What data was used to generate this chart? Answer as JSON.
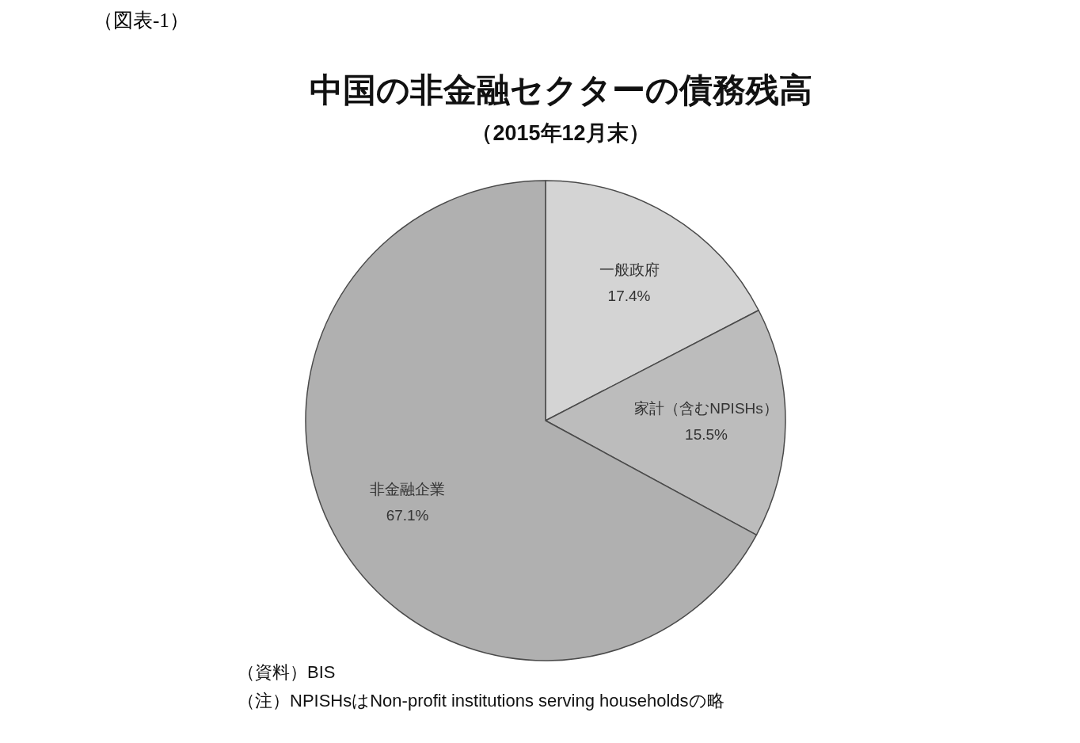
{
  "chart_data": {
    "type": "pie",
    "title": "中国の非金融セクターの債務残高",
    "subtitle": "（2015年12月末）",
    "categories": [
      "一般政府",
      "家計（含むNPISHs）",
      "非金融企業"
    ],
    "values": [
      17.4,
      15.5,
      67.1
    ],
    "value_labels": [
      "17.4%",
      "15.5%",
      "67.1%"
    ],
    "colors": [
      "#d4d4d4",
      "#bcbcbc",
      "#b0b0b0"
    ],
    "annotations": [
      "（図表-1）",
      "（資料）BIS",
      "（注）NPISHsはNon-profit institutions serving householdsの略"
    ],
    "legend": false
  }
}
